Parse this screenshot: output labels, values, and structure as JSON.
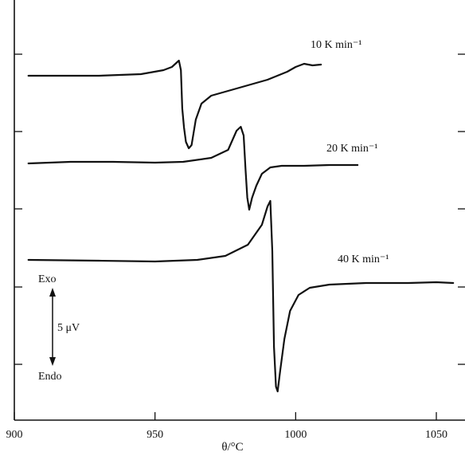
{
  "chart_data": {
    "type": "line",
    "xlabel": "θ/°C",
    "ylabel": "",
    "xlim": [
      900,
      1060
    ],
    "x_ticks": [
      900,
      950,
      1000,
      1050
    ],
    "grid": false,
    "series": [
      {
        "name": "10 K min⁻¹",
        "color": "#111111",
        "points": [
          [
            905,
            1.5
          ],
          [
            930,
            1.5
          ],
          [
            945,
            1.7
          ],
          [
            953,
            2.2
          ],
          [
            956,
            2.6
          ],
          [
            958.5,
            3.4
          ],
          [
            959.2,
            2.2
          ],
          [
            959.7,
            -2.6
          ],
          [
            960.3,
            -5.0
          ],
          [
            961,
            -6.8
          ],
          [
            962,
            -7.6
          ],
          [
            963,
            -7.2
          ],
          [
            964.5,
            -4.0
          ],
          [
            966.5,
            -2.0
          ],
          [
            970,
            -1.0
          ],
          [
            980,
            0.0
          ],
          [
            990,
            1.0
          ],
          [
            997,
            2.0
          ],
          [
            1000,
            2.6
          ],
          [
            1003,
            3.0
          ],
          [
            1006,
            2.8
          ],
          [
            1009,
            2.9
          ]
        ]
      },
      {
        "name": "20 K min⁻¹",
        "color": "#111111",
        "points": [
          [
            905,
            1.3
          ],
          [
            920,
            1.5
          ],
          [
            935,
            1.5
          ],
          [
            950,
            1.4
          ],
          [
            960,
            1.5
          ],
          [
            970,
            2.0
          ],
          [
            976,
            3.0
          ],
          [
            979,
            5.4
          ],
          [
            980.5,
            5.9
          ],
          [
            981.5,
            4.8
          ],
          [
            982.2,
            0.5
          ],
          [
            982.8,
            -3.0
          ],
          [
            983.5,
            -4.5
          ],
          [
            984.5,
            -3.0
          ],
          [
            986,
            -1.5
          ],
          [
            988,
            0.0
          ],
          [
            991,
            0.8
          ],
          [
            995,
            1.0
          ],
          [
            1003,
            1.0
          ],
          [
            1012,
            1.1
          ],
          [
            1022,
            1.1
          ]
        ]
      },
      {
        "name": "40 K min⁻¹",
        "color": "#111111",
        "points": [
          [
            905,
            2.9
          ],
          [
            930,
            2.8
          ],
          [
            950,
            2.7
          ],
          [
            965,
            2.9
          ],
          [
            975,
            3.4
          ],
          [
            983,
            4.8
          ],
          [
            988,
            7.3
          ],
          [
            990,
            9.6
          ],
          [
            991,
            10.3
          ],
          [
            991.7,
            4.0
          ],
          [
            992.3,
            -8.0
          ],
          [
            993,
            -13.0
          ],
          [
            993.6,
            -13.6
          ],
          [
            994.5,
            -11.0
          ],
          [
            996,
            -7.0
          ],
          [
            998,
            -3.5
          ],
          [
            1001,
            -1.5
          ],
          [
            1005,
            -0.6
          ],
          [
            1012,
            -0.2
          ],
          [
            1025,
            0.0
          ],
          [
            1040,
            0.0
          ],
          [
            1050,
            0.1
          ],
          [
            1056,
            0.0
          ]
        ]
      }
    ],
    "annotations": {
      "exo": "Exo",
      "endo": "Endo",
      "scale": "5 μV"
    }
  }
}
